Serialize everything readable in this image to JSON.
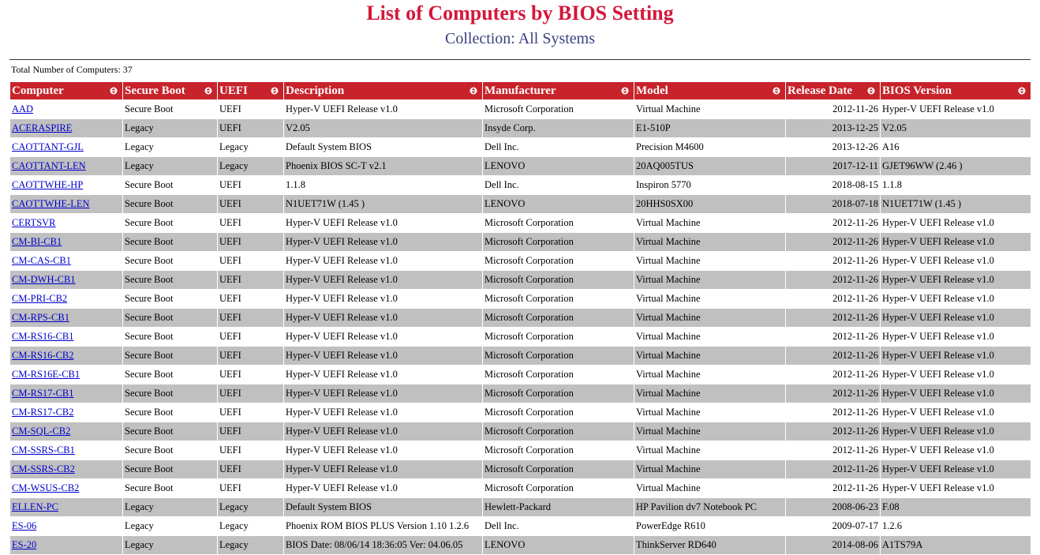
{
  "header": {
    "title": "List of Computers by BIOS Setting",
    "subtitle": "Collection: All Systems",
    "total": "Total Number of Computers: 37"
  },
  "table": {
    "columns": [
      "Computer",
      "Secure Boot",
      "UEFI",
      "Description",
      "Manufacturer",
      "Model",
      "Release Date",
      "BIOS Version"
    ],
    "rows": [
      [
        "AAD",
        "Secure Boot",
        "UEFI",
        "Hyper-V UEFI Release v1.0",
        "Microsoft Corporation",
        "Virtual Machine",
        "2012-11-26",
        "Hyper-V UEFI Release v1.0"
      ],
      [
        "ACERASPIRE",
        "Legacy",
        "UEFI",
        "V2.05",
        "Insyde Corp.",
        "E1-510P",
        "2013-12-25",
        "V2.05"
      ],
      [
        "CAOTTANT-GJL",
        "Legacy",
        "Legacy",
        "Default System BIOS",
        "Dell Inc.",
        "Precision M4600",
        "2013-12-26",
        "A16"
      ],
      [
        "CAOTTANT-LEN",
        "Legacy",
        "Legacy",
        "Phoenix BIOS SC-T v2.1",
        "LENOVO",
        "20AQ005TUS",
        "2017-12-11",
        "GJET96WW (2.46 )"
      ],
      [
        "CAOTTWHE-HP",
        "Secure Boot",
        "UEFI",
        "1.1.8",
        "Dell Inc.",
        "Inspiron 5770",
        "2018-08-15",
        "1.1.8"
      ],
      [
        "CAOTTWHE-LEN",
        "Secure Boot",
        "UEFI",
        "N1UET71W (1.45 )",
        "LENOVO",
        "20HHS0SX00",
        "2018-07-18",
        "N1UET71W (1.45 )"
      ],
      [
        "CERTSVR",
        "Secure Boot",
        "UEFI",
        "Hyper-V UEFI Release v1.0",
        "Microsoft Corporation",
        "Virtual Machine",
        "2012-11-26",
        "Hyper-V UEFI Release v1.0"
      ],
      [
        "CM-BI-CB1",
        "Secure Boot",
        "UEFI",
        "Hyper-V UEFI Release v1.0",
        "Microsoft Corporation",
        "Virtual Machine",
        "2012-11-26",
        "Hyper-V UEFI Release v1.0"
      ],
      [
        "CM-CAS-CB1",
        "Secure Boot",
        "UEFI",
        "Hyper-V UEFI Release v1.0",
        "Microsoft Corporation",
        "Virtual Machine",
        "2012-11-26",
        "Hyper-V UEFI Release v1.0"
      ],
      [
        "CM-DWH-CB1",
        "Secure Boot",
        "UEFI",
        "Hyper-V UEFI Release v1.0",
        "Microsoft Corporation",
        "Virtual Machine",
        "2012-11-26",
        "Hyper-V UEFI Release v1.0"
      ],
      [
        "CM-PRI-CB2",
        "Secure Boot",
        "UEFI",
        "Hyper-V UEFI Release v1.0",
        "Microsoft Corporation",
        "Virtual Machine",
        "2012-11-26",
        "Hyper-V UEFI Release v1.0"
      ],
      [
        "CM-RPS-CB1",
        "Secure Boot",
        "UEFI",
        "Hyper-V UEFI Release v1.0",
        "Microsoft Corporation",
        "Virtual Machine",
        "2012-11-26",
        "Hyper-V UEFI Release v1.0"
      ],
      [
        "CM-RS16-CB1",
        "Secure Boot",
        "UEFI",
        "Hyper-V UEFI Release v1.0",
        "Microsoft Corporation",
        "Virtual Machine",
        "2012-11-26",
        "Hyper-V UEFI Release v1.0"
      ],
      [
        "CM-RS16-CB2",
        "Secure Boot",
        "UEFI",
        "Hyper-V UEFI Release v1.0",
        "Microsoft Corporation",
        "Virtual Machine",
        "2012-11-26",
        "Hyper-V UEFI Release v1.0"
      ],
      [
        "CM-RS16E-CB1",
        "Secure Boot",
        "UEFI",
        "Hyper-V UEFI Release v1.0",
        "Microsoft Corporation",
        "Virtual Machine",
        "2012-11-26",
        "Hyper-V UEFI Release v1.0"
      ],
      [
        "CM-RS17-CB1",
        "Secure Boot",
        "UEFI",
        "Hyper-V UEFI Release v1.0",
        "Microsoft Corporation",
        "Virtual Machine",
        "2012-11-26",
        "Hyper-V UEFI Release v1.0"
      ],
      [
        "CM-RS17-CB2",
        "Secure Boot",
        "UEFI",
        "Hyper-V UEFI Release v1.0",
        "Microsoft Corporation",
        "Virtual Machine",
        "2012-11-26",
        "Hyper-V UEFI Release v1.0"
      ],
      [
        "CM-SQL-CB2",
        "Secure Boot",
        "UEFI",
        "Hyper-V UEFI Release v1.0",
        "Microsoft Corporation",
        "Virtual Machine",
        "2012-11-26",
        "Hyper-V UEFI Release v1.0"
      ],
      [
        "CM-SSRS-CB1",
        "Secure Boot",
        "UEFI",
        "Hyper-V UEFI Release v1.0",
        "Microsoft Corporation",
        "Virtual Machine",
        "2012-11-26",
        "Hyper-V UEFI Release v1.0"
      ],
      [
        "CM-SSRS-CB2",
        "Secure Boot",
        "UEFI",
        "Hyper-V UEFI Release v1.0",
        "Microsoft Corporation",
        "Virtual Machine",
        "2012-11-26",
        "Hyper-V UEFI Release v1.0"
      ],
      [
        "CM-WSUS-CB2",
        "Secure Boot",
        "UEFI",
        "Hyper-V UEFI Release v1.0",
        "Microsoft Corporation",
        "Virtual Machine",
        "2012-11-26",
        "Hyper-V UEFI Release v1.0"
      ],
      [
        "ELLEN-PC",
        "Legacy",
        "Legacy",
        "Default System BIOS",
        "Hewlett-Packard",
        "HP Pavilion dv7 Notebook PC",
        "2008-06-23",
        "F.08"
      ],
      [
        "ES-06",
        "Legacy",
        "Legacy",
        "Phoenix ROM BIOS PLUS Version 1.10 1.2.6",
        "Dell Inc.",
        "PowerEdge R610",
        "2009-07-17",
        "1.2.6"
      ],
      [
        "ES-20",
        "Legacy",
        "Legacy",
        "BIOS Date: 08/06/14 18:36:05 Ver: 04.06.05",
        "LENOVO",
        "ThinkServer RD640",
        "2014-08-06",
        "A1TS79A"
      ]
    ]
  }
}
